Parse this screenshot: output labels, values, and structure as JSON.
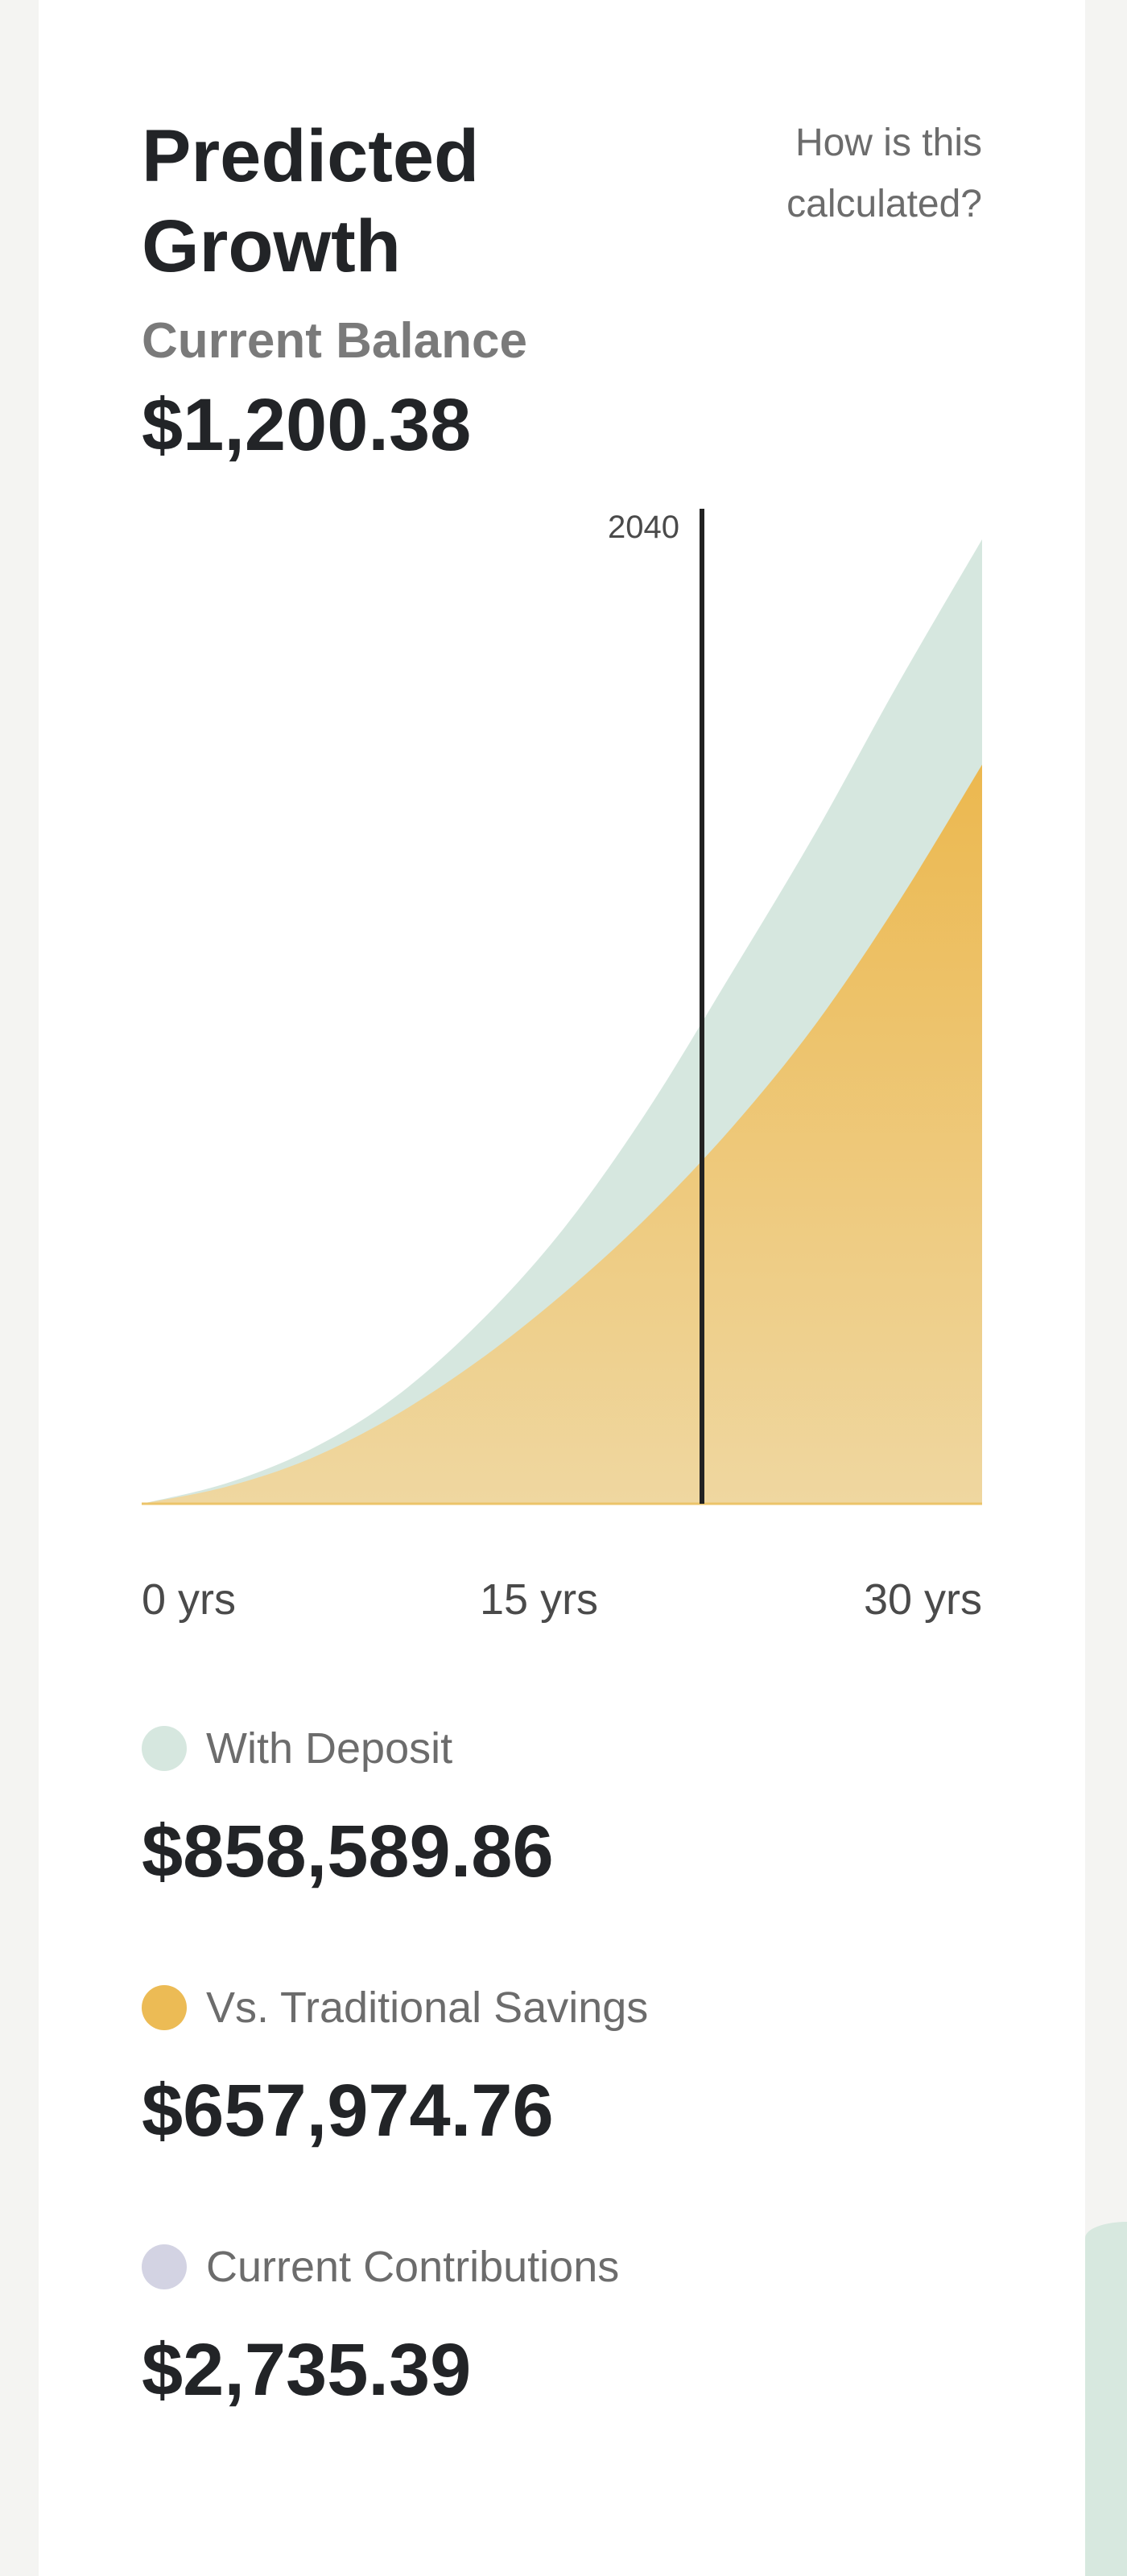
{
  "header": {
    "title": "Predicted Growth",
    "help_link": "How is this calculated?"
  },
  "balance": {
    "label": "Current Balance",
    "value": "$1,200.38"
  },
  "colors": {
    "with_deposit": "#d6e7df",
    "traditional_savings": "#ecbb55",
    "current_contributions": "#d3d3e3",
    "marker": "#222222"
  },
  "chart_data": {
    "type": "area",
    "x_unit": "yrs",
    "x": [
      0,
      3,
      6,
      9,
      12,
      15,
      18,
      21,
      24,
      27,
      30
    ],
    "series": [
      {
        "name": "With Deposit",
        "values": [
          0,
          18000,
          48000,
          94000,
          160000,
          243000,
          348000,
          470000,
          595000,
          730000,
          858589.86
        ]
      },
      {
        "name": "Vs. Traditional Savings",
        "values": [
          0,
          15000,
          40000,
          78000,
          127000,
          186000,
          254000,
          333000,
          425000,
          535000,
          657974.76
        ]
      }
    ],
    "xlim": [
      0,
      30
    ],
    "ylim": [
      0,
      858589.86
    ],
    "x_ticks": [
      "0 yrs",
      "15 yrs",
      "30 yrs"
    ],
    "marker": {
      "x": 20,
      "label": "2040"
    },
    "grid": false
  },
  "legend": [
    {
      "label": "With Deposit",
      "value": "$858,589.86",
      "color": "#d6e7df"
    },
    {
      "label": "Vs. Traditional Savings",
      "value": "$657,974.76",
      "color": "#ecbb55"
    },
    {
      "label": "Current Contributions",
      "value": "$2,735.39",
      "color": "#d3d3e3"
    }
  ]
}
